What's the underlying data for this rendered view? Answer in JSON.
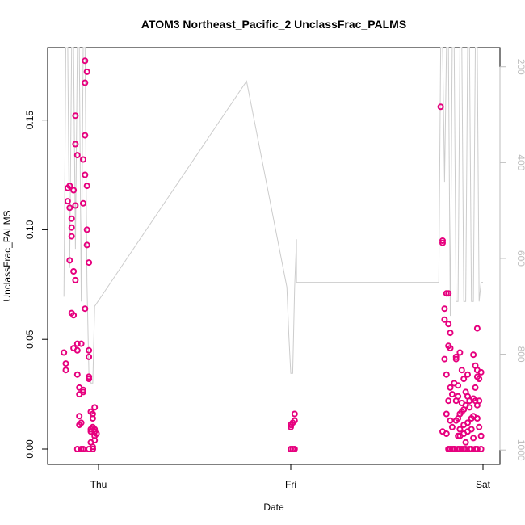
{
  "chart_data": {
    "type": "scatter",
    "title": "ATOM3 Northeast_Pacific_2 UnclassFrac_PALMS",
    "xlabel": "Date",
    "ylabel": "UnclassFrac_PALMS",
    "x_ticks": [
      "Thu",
      "Fri",
      "Sat"
    ],
    "y_ticks": [
      "0.00",
      "0.05",
      "0.10",
      "0.15"
    ],
    "ylim": [
      -0.007,
      0.183
    ],
    "right_axis": {
      "ticks": [
        "200",
        "400",
        "600",
        "800",
        "1000"
      ],
      "range": [
        1030,
        160
      ],
      "reversed": true,
      "color": "#bdbdbd"
    },
    "series": [
      {
        "color": "#e6007e",
        "marker": "open-circle",
        "points": [
          [
            -0.18,
            0.044
          ],
          [
            -0.17,
            0.039
          ],
          [
            -0.17,
            0.036
          ],
          [
            -0.16,
            0.113
          ],
          [
            -0.16,
            0.119
          ],
          [
            -0.15,
            0.11
          ],
          [
            -0.15,
            0.12
          ],
          [
            -0.15,
            0.086
          ],
          [
            -0.14,
            0.062
          ],
          [
            -0.14,
            0.105
          ],
          [
            -0.14,
            0.101
          ],
          [
            -0.14,
            0.097
          ],
          [
            -0.13,
            0.118
          ],
          [
            -0.13,
            0.061
          ],
          [
            -0.13,
            0.046
          ],
          [
            -0.13,
            0.081
          ],
          [
            -0.12,
            0.077
          ],
          [
            -0.12,
            0.139
          ],
          [
            -0.12,
            0.152
          ],
          [
            -0.12,
            0.111
          ],
          [
            -0.11,
            0.134
          ],
          [
            -0.11,
            0.048
          ],
          [
            -0.11,
            0.045
          ],
          [
            -0.11,
            0.034
          ],
          [
            -0.11,
            0.0
          ],
          [
            -0.1,
            0.028
          ],
          [
            -0.1,
            0.025
          ],
          [
            -0.1,
            0.015
          ],
          [
            -0.1,
            0.011
          ],
          [
            -0.09,
            0.048
          ],
          [
            -0.09,
            0.0
          ],
          [
            -0.09,
            0.012
          ],
          [
            -0.08,
            0.027
          ],
          [
            -0.08,
            0.026
          ],
          [
            -0.08,
            0.0
          ],
          [
            -0.08,
            0.112
          ],
          [
            -0.08,
            0.132
          ],
          [
            -0.07,
            0.143
          ],
          [
            -0.07,
            0.125
          ],
          [
            -0.07,
            0.064
          ],
          [
            -0.07,
            0.167
          ],
          [
            -0.07,
            0.177
          ],
          [
            -0.06,
            0.172
          ],
          [
            -0.06,
            0.12
          ],
          [
            -0.06,
            0.1
          ],
          [
            -0.06,
            0.093
          ],
          [
            -0.05,
            0.085
          ],
          [
            -0.05,
            0.045
          ],
          [
            -0.05,
            0.042
          ],
          [
            -0.05,
            0.033
          ],
          [
            -0.05,
            0.032
          ],
          [
            -0.05,
            0.0
          ],
          [
            -0.04,
            0.017
          ],
          [
            -0.04,
            0.009
          ],
          [
            -0.04,
            0.008
          ],
          [
            -0.04,
            0.003
          ],
          [
            -0.03,
            0.0
          ],
          [
            -0.03,
            0.014
          ],
          [
            -0.03,
            0.01
          ],
          [
            -0.03,
            0.0
          ],
          [
            -0.03,
            0.001
          ],
          [
            -0.03,
            0.016
          ],
          [
            -0.02,
            0.019
          ],
          [
            -0.02,
            0.008
          ],
          [
            -0.02,
            0.006
          ],
          [
            -0.02,
            0.004
          ],
          [
            -0.02,
            0.009
          ],
          [
            -0.01,
            0.007
          ],
          [
            1.0,
            0.0
          ],
          [
            1.0,
            0.011
          ],
          [
            1.0,
            0.01
          ],
          [
            1.01,
            0.012
          ],
          [
            1.01,
            0.0
          ],
          [
            1.02,
            0.016
          ],
          [
            1.02,
            0.013
          ],
          [
            1.02,
            0.0
          ],
          [
            1.78,
            0.156
          ],
          [
            1.79,
            0.094
          ],
          [
            1.79,
            0.095
          ],
          [
            1.79,
            0.008
          ],
          [
            1.8,
            0.064
          ],
          [
            1.8,
            0.059
          ],
          [
            1.8,
            0.041
          ],
          [
            1.81,
            0.071
          ],
          [
            1.81,
            0.034
          ],
          [
            1.81,
            0.016
          ],
          [
            1.81,
            0.007
          ],
          [
            1.82,
            0.071
          ],
          [
            1.82,
            0.047
          ],
          [
            1.82,
            0.057
          ],
          [
            1.82,
            0.022
          ],
          [
            1.82,
            0.0
          ],
          [
            1.83,
            0.053
          ],
          [
            1.83,
            0.046
          ],
          [
            1.83,
            0.028
          ],
          [
            1.83,
            0.013
          ],
          [
            1.83,
            0.0
          ],
          [
            1.84,
            0.0
          ],
          [
            1.84,
            0.025
          ],
          [
            1.84,
            0.01
          ],
          [
            1.85,
            0.0
          ],
          [
            1.85,
            0.0
          ],
          [
            1.85,
            0.03
          ],
          [
            1.86,
            0.042
          ],
          [
            1.86,
            0.041
          ],
          [
            1.86,
            0.022
          ],
          [
            1.86,
            0.013
          ],
          [
            1.87,
            0.0
          ],
          [
            1.87,
            0.006
          ],
          [
            1.87,
            0.029
          ],
          [
            1.87,
            0.024
          ],
          [
            1.87,
            0.014
          ],
          [
            1.88,
            0.044
          ],
          [
            1.88,
            0.016
          ],
          [
            1.88,
            0.0
          ],
          [
            1.88,
            0.009
          ],
          [
            1.88,
            0.006
          ],
          [
            1.89,
            0.036
          ],
          [
            1.89,
            0.021
          ],
          [
            1.89,
            0.017
          ],
          [
            1.89,
            0.0
          ],
          [
            1.9,
            0.032
          ],
          [
            1.9,
            0.018
          ],
          [
            1.9,
            0.011
          ],
          [
            1.9,
            0.007
          ],
          [
            1.9,
            0.0
          ],
          [
            1.91,
            0.026
          ],
          [
            1.91,
            0.02
          ],
          [
            1.91,
            0.003
          ],
          [
            1.91,
            0.0
          ],
          [
            1.92,
            0.034
          ],
          [
            1.92,
            0.024
          ],
          [
            1.92,
            0.012
          ],
          [
            1.92,
            0.008
          ],
          [
            1.93,
            0.0
          ],
          [
            1.93,
            0.022
          ],
          [
            1.93,
            0.019
          ],
          [
            1.94,
            0.014
          ],
          [
            1.94,
            0.009
          ],
          [
            1.94,
            0.0
          ],
          [
            1.95,
            0.043
          ],
          [
            1.95,
            0.023
          ],
          [
            1.95,
            0.015
          ],
          [
            1.95,
            0.005
          ],
          [
            1.96,
            0.038
          ],
          [
            1.96,
            0.028
          ],
          [
            1.96,
            0.022
          ],
          [
            1.96,
            0.0
          ],
          [
            1.97,
            0.055
          ],
          [
            1.97,
            0.036
          ],
          [
            1.97,
            0.033
          ],
          [
            1.97,
            0.02
          ],
          [
            1.97,
            0.014
          ],
          [
            1.97,
            0.0
          ],
          [
            1.98,
            0.032
          ],
          [
            1.98,
            0.022
          ],
          [
            1.98,
            0.01
          ],
          [
            1.99,
            0.035
          ],
          [
            1.99,
            0.006
          ],
          [
            1.99,
            0.0
          ]
        ]
      },
      {
        "axis": "right",
        "type": "line",
        "color": "#cccccc",
        "points": [
          [
            -0.18,
            680
          ],
          [
            -0.17,
            160
          ],
          [
            -0.16,
            160
          ],
          [
            -0.15,
            620
          ],
          [
            -0.14,
            160
          ],
          [
            -0.13,
            160
          ],
          [
            -0.12,
            580
          ],
          [
            -0.11,
            160
          ],
          [
            -0.1,
            160
          ],
          [
            -0.09,
            690
          ],
          [
            -0.08,
            160
          ],
          [
            -0.07,
            160
          ],
          [
            -0.06,
            650
          ],
          [
            -0.05,
            840
          ],
          [
            -0.04,
            860
          ],
          [
            -0.03,
            860
          ],
          [
            -0.02,
            700
          ],
          [
            0.77,
            230
          ],
          [
            0.98,
            660
          ],
          [
            0.99,
            760
          ],
          [
            1.0,
            840
          ],
          [
            1.01,
            840
          ],
          [
            1.02,
            660
          ],
          [
            1.03,
            560
          ],
          [
            1.03,
            640
          ],
          [
            1.03,
            650
          ],
          [
            1.05,
            650
          ],
          [
            1.76,
            650
          ],
          [
            1.77,
            650
          ],
          [
            1.78,
            160
          ],
          [
            1.79,
            160
          ],
          [
            1.8,
            440
          ],
          [
            1.81,
            160
          ],
          [
            1.82,
            160
          ],
          [
            1.83,
            720
          ],
          [
            1.84,
            160
          ],
          [
            1.85,
            160
          ],
          [
            1.86,
            690
          ],
          [
            1.87,
            690
          ],
          [
            1.88,
            160
          ],
          [
            1.89,
            160
          ],
          [
            1.9,
            690
          ],
          [
            1.91,
            690
          ],
          [
            1.92,
            160
          ],
          [
            1.93,
            160
          ],
          [
            1.94,
            690
          ],
          [
            1.95,
            690
          ],
          [
            1.96,
            160
          ],
          [
            1.97,
            160
          ],
          [
            1.98,
            690
          ],
          [
            1.99,
            650
          ],
          [
            2.0,
            650
          ]
        ]
      }
    ]
  }
}
